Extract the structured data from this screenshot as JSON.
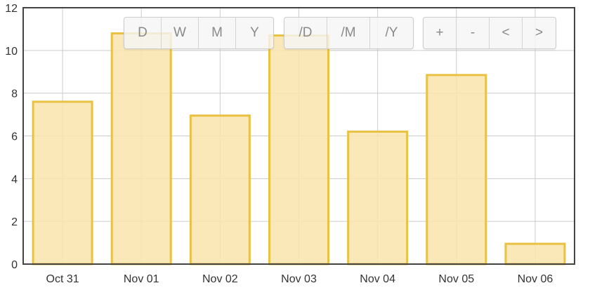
{
  "chart_data": {
    "type": "bar",
    "categories": [
      "Oct 31",
      "Nov 01",
      "Nov 02",
      "Nov 03",
      "Nov 04",
      "Nov 05",
      "Nov 06"
    ],
    "values": [
      7.6,
      10.8,
      6.95,
      10.7,
      6.2,
      8.85,
      0.95
    ],
    "ylim": [
      0,
      12
    ],
    "yticks": [
      "0",
      "2",
      "4",
      "6",
      "8",
      "10",
      "12"
    ],
    "grid": true,
    "bar_fill": "#f9e4ac",
    "bar_stroke": "#e9c143",
    "axis_color": "#444444",
    "grid_color": "#cccccc"
  },
  "toolbar": {
    "period_buttons": [
      "D",
      "W",
      "M",
      "Y"
    ],
    "per_buttons": [
      "/D",
      "/M",
      "/Y"
    ],
    "nav_buttons": [
      "+",
      "-",
      "<",
      ">"
    ]
  }
}
